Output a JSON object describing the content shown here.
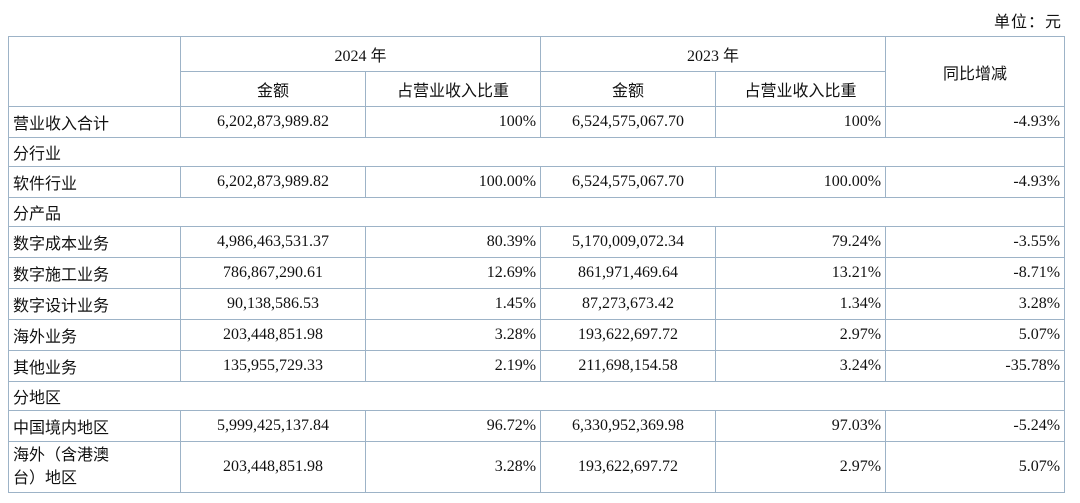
{
  "unit_label": "单位：元",
  "table": {
    "header": {
      "col_2024": "2024 年",
      "col_2023": "2023 年",
      "yoy": "同比增减",
      "amount": "金额",
      "proportion": "占营业收入比重"
    },
    "rows": [
      {
        "type": "data",
        "label": "营业收入合计",
        "a2024": "6,202,873,989.82",
        "p2024": "100%",
        "a2023": "6,524,575,067.70",
        "p2023": "100%",
        "yoy": "-4.93%"
      },
      {
        "type": "section",
        "label": "分行业"
      },
      {
        "type": "data",
        "label": "软件行业",
        "a2024": "6,202,873,989.82",
        "p2024": "100.00%",
        "a2023": "6,524,575,067.70",
        "p2023": "100.00%",
        "yoy": "-4.93%"
      },
      {
        "type": "section",
        "label": "分产品"
      },
      {
        "type": "data",
        "label": "数字成本业务",
        "a2024": "4,986,463,531.37",
        "p2024": "80.39%",
        "a2023": "5,170,009,072.34",
        "p2023": "79.24%",
        "yoy": "-3.55%"
      },
      {
        "type": "data",
        "label": "数字施工业务",
        "a2024": "786,867,290.61",
        "p2024": "12.69%",
        "a2023": "861,971,469.64",
        "p2023": "13.21%",
        "yoy": "-8.71%"
      },
      {
        "type": "data",
        "label": "数字设计业务",
        "a2024": "90,138,586.53",
        "p2024": "1.45%",
        "a2023": "87,273,673.42",
        "p2023": "1.34%",
        "yoy": "3.28%"
      },
      {
        "type": "data",
        "label": "海外业务",
        "a2024": "203,448,851.98",
        "p2024": "3.28%",
        "a2023": "193,622,697.72",
        "p2023": "2.97%",
        "yoy": "5.07%"
      },
      {
        "type": "data",
        "label": "其他业务",
        "a2024": "135,955,729.33",
        "p2024": "2.19%",
        "a2023": "211,698,154.58",
        "p2023": "3.24%",
        "yoy": "-35.78%"
      },
      {
        "type": "section",
        "label": "分地区"
      },
      {
        "type": "data",
        "label": "中国境内地区",
        "a2024": "5,999,425,137.84",
        "p2024": "96.72%",
        "a2023": "6,330,952,369.98",
        "p2023": "97.03%",
        "yoy": "-5.24%"
      },
      {
        "type": "data",
        "label": "海外（含港澳台）地区",
        "a2024": "203,448,851.98",
        "p2024": "3.28%",
        "a2023": "193,622,697.72",
        "p2023": "2.97%",
        "yoy": "5.07%"
      }
    ]
  }
}
